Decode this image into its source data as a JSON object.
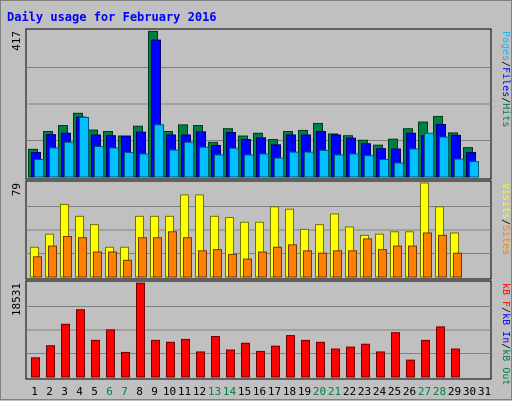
{
  "chart_data": {
    "type": "bar",
    "title": "Daily usage for February 2016",
    "colors": {
      "background": "#c0c0c0",
      "plot_bg": "#c0c0c0",
      "title": "#0000ff",
      "pages": "#00c0ff",
      "files": "#0000ff",
      "hits": "#008040",
      "visits": "#ffff00",
      "sites": "#ff8000",
      "kbf": "#ff0000",
      "kbin": "#0000ff",
      "kbout": "#008040",
      "weekend": "#008040",
      "weekday": "#000000"
    },
    "days": [
      "1",
      "2",
      "3",
      "4",
      "5",
      "6",
      "7",
      "8",
      "9",
      "10",
      "11",
      "12",
      "13",
      "14",
      "15",
      "16",
      "17",
      "18",
      "19",
      "20",
      "21",
      "22",
      "23",
      "24",
      "25",
      "26",
      "27",
      "28",
      "29",
      "30",
      "31"
    ],
    "weekend_days": [
      "6",
      "7",
      "13",
      "14",
      "20",
      "21",
      "27",
      "28"
    ],
    "panels": [
      {
        "id": "hits",
        "max_label": "417",
        "ylim": [
          0,
          417
        ],
        "legend": [
          {
            "text": "Pages",
            "color": "#00c0ff"
          },
          {
            "text": "/",
            "color": "#000000"
          },
          {
            "text": "Files",
            "color": "#0000ff"
          },
          {
            "text": "/",
            "color": "#000000"
          },
          {
            "text": "Hits",
            "color": "#008040"
          }
        ],
        "series": [
          {
            "name": "Hits",
            "color": "#008040",
            "values": [
              79,
              130,
              147,
              182,
              134,
              130,
              117,
              145,
              416,
              130,
              149,
              147,
              99,
              138,
              117,
              125,
              107,
              130,
              133,
              153,
              123,
              118,
              105,
              91,
              108,
              138,
              157,
              173,
              126,
              84,
              null
            ]
          },
          {
            "name": "Files",
            "color": "#0000ff",
            "values": [
              70,
              121,
              125,
              171,
              120,
              118,
              117,
              128,
              391,
              120,
              120,
              129,
              90,
              127,
              107,
              112,
              92,
              120,
              120,
              130,
              120,
              111,
              95,
              81,
              80,
              125,
              118,
              150,
              119,
              70,
              null
            ]
          },
          {
            "name": "Pages",
            "color": "#00c0ff",
            "values": [
              50,
              83,
              99,
              170,
              87,
              83,
              70,
              66,
              149,
              77,
              99,
              85,
              63,
              82,
              63,
              66,
              54,
              71,
              71,
              76,
              63,
              66,
              61,
              50,
              40,
              80,
              125,
              114,
              51,
              44,
              null
            ]
          }
        ]
      },
      {
        "id": "visits",
        "max_label": "79",
        "ylim": [
          0,
          79
        ],
        "legend": [
          {
            "text": "Visits",
            "color": "#ffff00"
          },
          {
            "text": "/",
            "color": "#000000"
          },
          {
            "text": "Sites",
            "color": "#ff8000"
          }
        ],
        "series": [
          {
            "name": "Visits",
            "color": "#ffff00",
            "values": [
              25,
              36,
              61,
              51,
              44,
              25,
              25,
              51,
              51,
              51,
              69,
              69,
              51,
              50,
              46,
              46,
              59,
              57,
              40,
              44,
              53,
              42,
              35,
              36,
              38,
              38,
              79,
              59,
              37,
              null,
              null
            ]
          },
          {
            "name": "Sites",
            "color": "#ff8000",
            "values": [
              17,
              26,
              34,
              33,
              21,
              21,
              14,
              33,
              33,
              38,
              33,
              22,
              23,
              19,
              15,
              21,
              25,
              27,
              22,
              20,
              22,
              22,
              32,
              23,
              26,
              26,
              37,
              35,
              20,
              null,
              null
            ]
          }
        ]
      },
      {
        "id": "kbytes",
        "max_label": "18531",
        "ylim": [
          0,
          18531
        ],
        "legend": [
          {
            "text": "kB F",
            "color": "#ff0000"
          },
          {
            "text": "/",
            "color": "#000000"
          },
          {
            "text": "kB In",
            "color": "#0000ff"
          },
          {
            "text": "/",
            "color": "#000000"
          },
          {
            "text": "kB Out",
            "color": "#008040"
          }
        ],
        "series": [
          {
            "name": "kB F",
            "color": "#ff0000",
            "values": [
              3789,
              6166,
              10390,
              13270,
              7220,
              9310,
              4845,
              18500,
              7220,
              6840,
              7410,
              4940,
              7980,
              5320,
              6650,
              5035,
              6080,
              8170,
              7220,
              6840,
              5510,
              5890,
              6460,
              4940,
              8740,
              3325,
              7220,
              9880,
              5510,
              null,
              null
            ]
          }
        ]
      }
    ]
  }
}
